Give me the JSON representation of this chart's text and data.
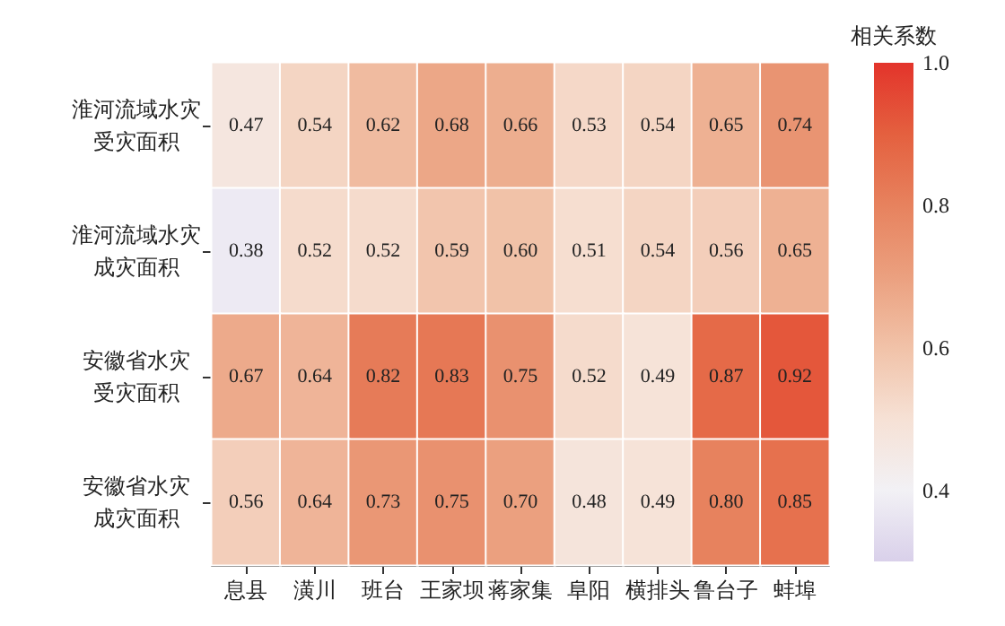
{
  "chart_data": {
    "type": "heatmap",
    "clabel": "相关系数",
    "categories": [
      "息县",
      "潢川",
      "班台",
      "王家坝",
      "蒋家集",
      "阜阳",
      "横排头",
      "鲁台子",
      "蚌埠"
    ],
    "y_categories": [
      "淮河流域水灾受灾面积",
      "淮河流域水灾成灾面积",
      "安徽省水灾受灾面积",
      "安徽省水灾成灾面积"
    ],
    "cells": [
      [
        0.47,
        0.54,
        0.62,
        0.68,
        0.66,
        0.53,
        0.54,
        0.65,
        0.74
      ],
      [
        0.38,
        0.52,
        0.52,
        0.59,
        0.6,
        0.51,
        0.54,
        0.56,
        0.65
      ],
      [
        0.67,
        0.64,
        0.82,
        0.83,
        0.75,
        0.52,
        0.49,
        0.87,
        0.92
      ],
      [
        0.56,
        0.64,
        0.73,
        0.75,
        0.7,
        0.48,
        0.49,
        0.8,
        0.85
      ]
    ],
    "cell_labels": [
      [
        "0.47",
        "0.54",
        "0.62",
        "0.68",
        "0.66",
        "0.53",
        "0.54",
        "0.65",
        "0.74"
      ],
      [
        "0.38",
        "0.52",
        "0.52",
        "0.59",
        "0.60",
        "0.51",
        "0.54",
        "0.56",
        "0.65"
      ],
      [
        "0.67",
        "0.64",
        "0.82",
        "0.83",
        "0.75",
        "0.52",
        "0.49",
        "0.87",
        "0.92"
      ],
      [
        "0.56",
        "0.64",
        "0.73",
        "0.75",
        "0.70",
        "0.48",
        "0.49",
        "0.80",
        "0.85"
      ]
    ],
    "clim": [
      0.3,
      1.0
    ],
    "cticks": [
      0.4,
      0.6,
      0.8,
      {
        "value": 1.0,
        "label": "1.0"
      }
    ]
  }
}
